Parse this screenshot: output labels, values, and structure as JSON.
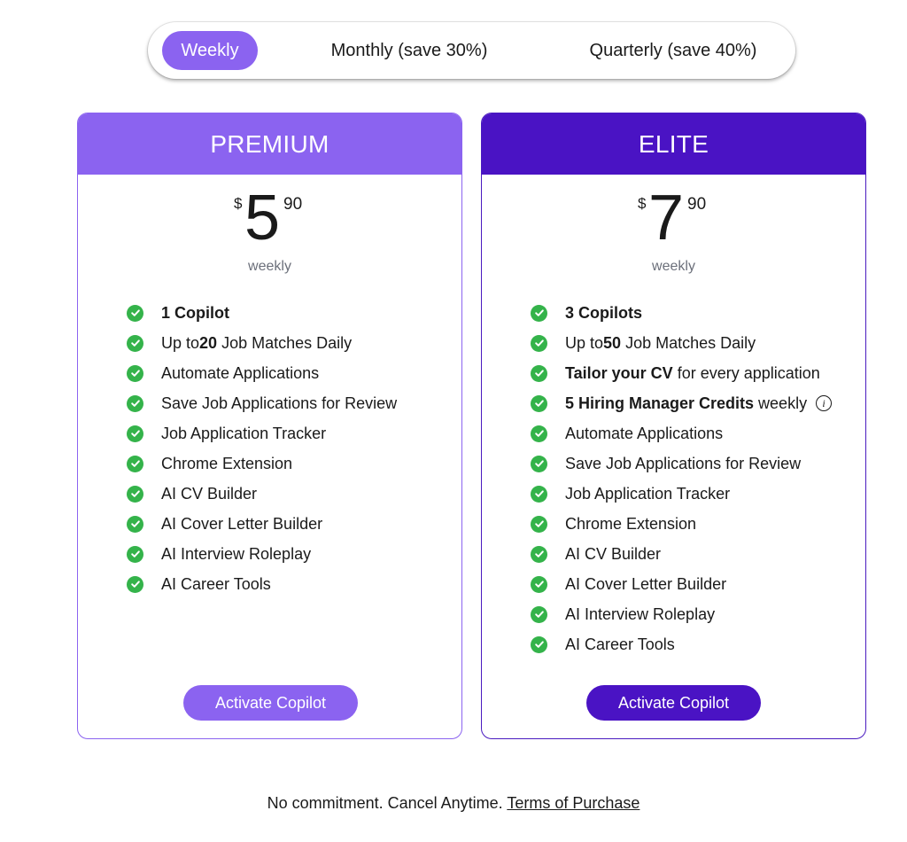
{
  "billing_toggle": {
    "options": [
      "Weekly",
      "Monthly (save 30%)",
      "Quarterly (save 40%)"
    ],
    "selected": "Weekly"
  },
  "colors": {
    "premium_accent": "#8b63f0",
    "elite_accent": "#4a13c4",
    "check_green": "#34b34a"
  },
  "plans": [
    {
      "name": "PREMIUM",
      "currency": "$",
      "price_whole": "5",
      "price_cents": "90",
      "period": "weekly",
      "features": [
        {
          "bold": "1 Copilot",
          "text": ""
        },
        {
          "pre": "Up to ",
          "bold": "20",
          "text": " Job Matches Daily"
        },
        {
          "text": "Automate Applications"
        },
        {
          "text": "Save Job Applications for Review"
        },
        {
          "text": "Job Application Tracker"
        },
        {
          "text": "Chrome Extension"
        },
        {
          "text": "AI CV Builder"
        },
        {
          "text": "AI Cover Letter Builder"
        },
        {
          "text": "AI Interview Roleplay"
        },
        {
          "text": "AI Career Tools"
        }
      ],
      "cta": "Activate Copilot"
    },
    {
      "name": "ELITE",
      "currency": "$",
      "price_whole": "7",
      "price_cents": "90",
      "period": "weekly",
      "features": [
        {
          "bold": "3 Copilots",
          "text": ""
        },
        {
          "pre": "Up to ",
          "bold": "50",
          "text": " Job Matches Daily"
        },
        {
          "bold": "Tailor your CV",
          "text": " for every application"
        },
        {
          "bold": "5 Hiring Manager Credits",
          "text": " weekly",
          "info_icon": "info-icon"
        },
        {
          "text": "Automate Applications"
        },
        {
          "text": "Save Job Applications for Review"
        },
        {
          "text": "Job Application Tracker"
        },
        {
          "text": "Chrome Extension"
        },
        {
          "text": "AI CV Builder"
        },
        {
          "text": "AI Cover Letter Builder"
        },
        {
          "text": "AI Interview Roleplay"
        },
        {
          "text": "AI Career Tools"
        }
      ],
      "cta": "Activate Copilot"
    }
  ],
  "footer": {
    "text": "No commitment. Cancel Anytime. ",
    "link": "Terms of Purchase"
  }
}
